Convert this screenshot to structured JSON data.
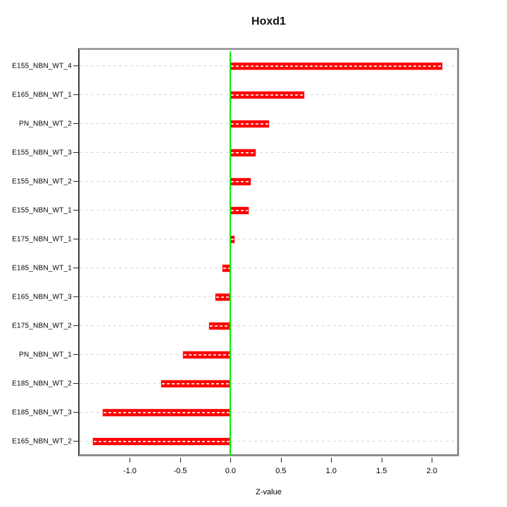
{
  "chart_data": {
    "type": "bar",
    "orientation": "horizontal",
    "title": "Hoxd1",
    "xlabel": "Z-value",
    "categories": [
      "E155_NBN_WT_4",
      "E165_NBN_WT_1",
      "PN_NBN_WT_2",
      "E155_NBN_WT_3",
      "E155_NBN_WT_2",
      "E155_NBN_WT_1",
      "E175_NBN_WT_1",
      "E185_NBN_WT_1",
      "E165_NBN_WT_3",
      "E175_NBN_WT_2",
      "PN_NBN_WT_1",
      "E185_NBN_WT_2",
      "E185_NBN_WT_3",
      "E165_NBN_WT_2"
    ],
    "values": [
      2.1,
      0.73,
      0.38,
      0.25,
      0.2,
      0.18,
      0.04,
      -0.08,
      -0.15,
      -0.21,
      -0.47,
      -0.69,
      -1.27,
      -1.37
    ],
    "x_tick_labels": [
      "-1.0",
      "-0.5",
      "0.0",
      "0.5",
      "1.0",
      "1.5",
      "2.0"
    ],
    "xlim": [
      -1.5,
      2.25
    ],
    "zero_reference_line": 0,
    "grid": "horizontal dashed per category",
    "legend": "none",
    "colors": {
      "bar": "#ff0000",
      "zero_line": "#00ee00",
      "gridline": "#d7d7d7",
      "box_border": "#8f8f8f",
      "axis_text": "#000000"
    }
  }
}
